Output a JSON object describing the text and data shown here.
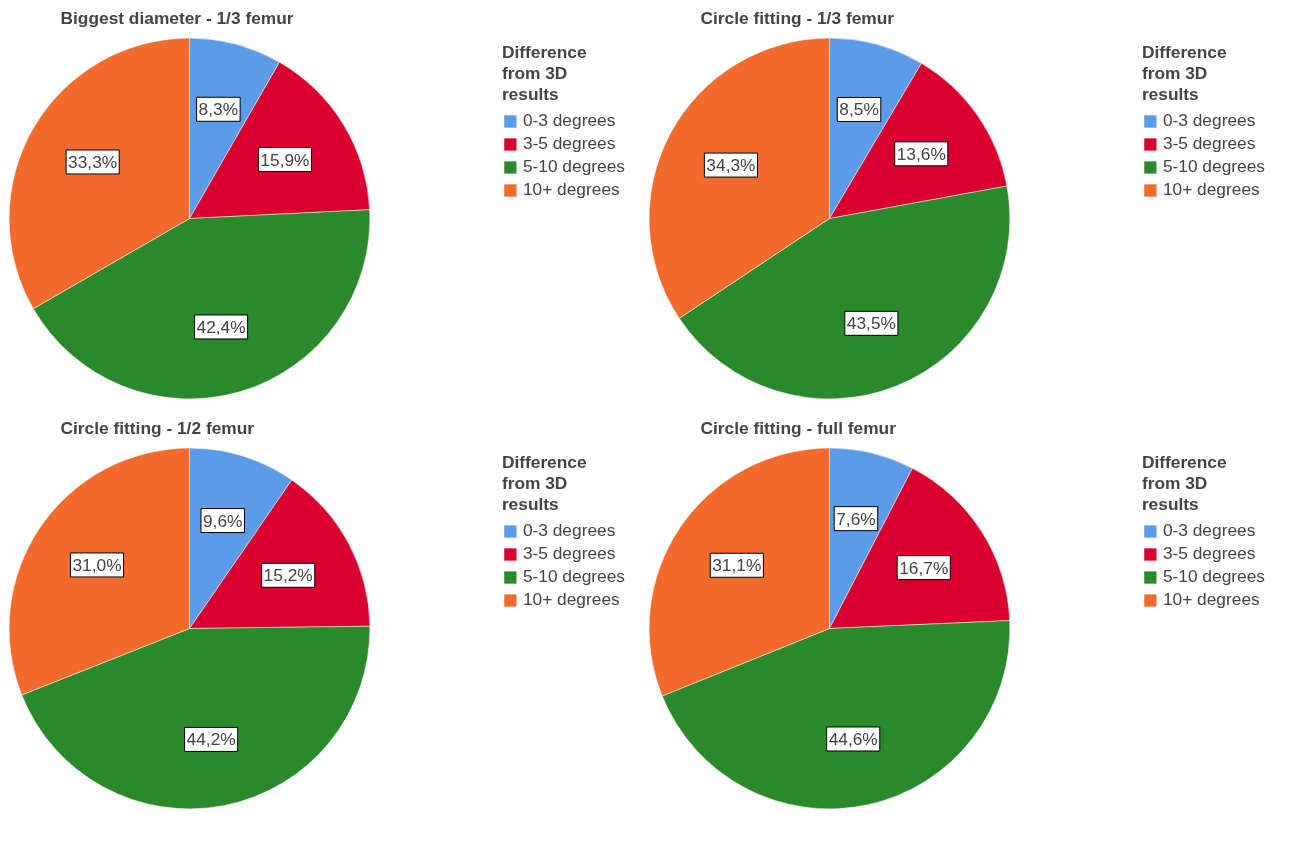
{
  "chart_data": [
    {
      "type": "pie",
      "title": "Biggest diameter - 1/3 femur",
      "legend_title": "Difference from 3D results",
      "legend": "top right",
      "categories": [
        "0-3 degrees",
        "3-5 degrees",
        "5-10 degrees",
        "10+ degrees"
      ],
      "values": [
        8.3,
        15.9,
        42.4,
        33.3
      ],
      "value_labels": [
        "8,3%",
        "15,9%",
        "42,4%",
        "33,3%"
      ],
      "colors": [
        "#5b9be8",
        "#d90030",
        "#2a892a",
        "#f26b2c"
      ]
    },
    {
      "type": "pie",
      "title": "Circle fitting - 1/3 femur",
      "legend_title": "Difference from 3D results",
      "legend": "top right",
      "categories": [
        "0-3 degrees",
        "3-5 degrees",
        "5-10 degrees",
        "10+ degrees"
      ],
      "values": [
        8.5,
        13.6,
        43.5,
        34.3
      ],
      "value_labels": [
        "8,5%",
        "13,6%",
        "43,5%",
        "34,3%"
      ],
      "colors": [
        "#5b9be8",
        "#d90030",
        "#2a892a",
        "#f26b2c"
      ]
    },
    {
      "type": "pie",
      "title": "Circle fitting - 1/2 femur",
      "legend_title": "Difference from 3D results",
      "legend": "top right",
      "categories": [
        "0-3 degrees",
        "3-5 degrees",
        "5-10 degrees",
        "10+ degrees"
      ],
      "values": [
        9.6,
        15.2,
        44.2,
        31.0
      ],
      "value_labels": [
        "9,6%",
        "15,2%",
        "44,2%",
        "31,0%"
      ],
      "colors": [
        "#5b9be8",
        "#d90030",
        "#2a892a",
        "#f26b2c"
      ]
    },
    {
      "type": "pie",
      "title": "Circle fitting - full femur",
      "legend_title": "Difference from 3D results",
      "legend": "top right",
      "categories": [
        "0-3 degrees",
        "3-5 degrees",
        "5-10 degrees",
        "10+ degrees"
      ],
      "values": [
        7.6,
        16.7,
        44.6,
        31.1
      ],
      "value_labels": [
        "7,6%",
        "16,7%",
        "44,6%",
        "31,1%"
      ],
      "colors": [
        "#5b9be8",
        "#d90030",
        "#2a892a",
        "#f26b2c"
      ]
    }
  ]
}
